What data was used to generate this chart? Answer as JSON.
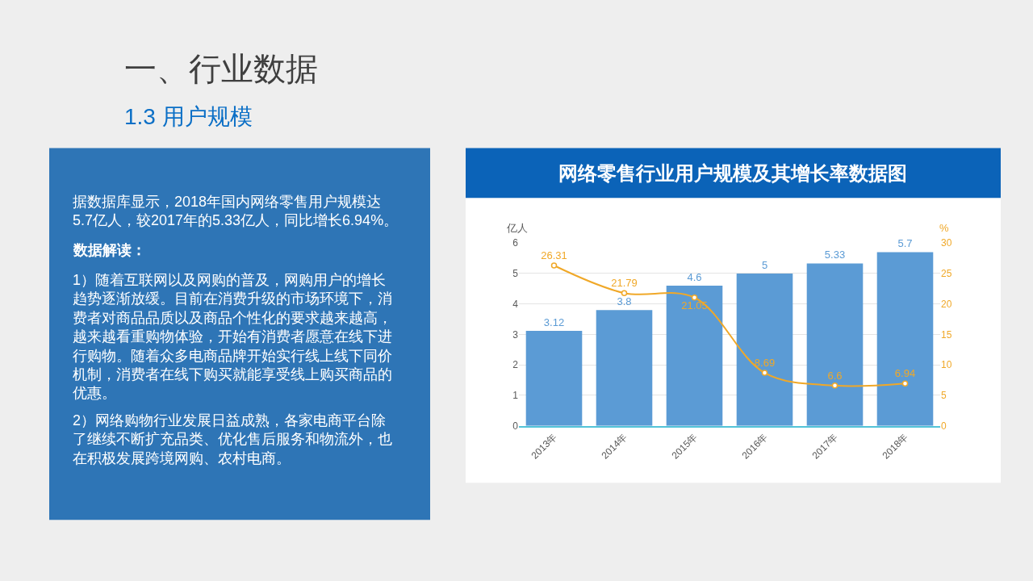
{
  "chart_data": [
    {
      "type": "other",
      "title": "一、行业数据",
      "subtitle": "1.3 用户规模",
      "annotations": [
        "据数据库显示，2018年国内网络零售用户规模达5.7亿人，较2017年的5.33亿人，同比增长6.94%。",
        "数据解读：",
        "1）随着互联网以及网购的普及，网购用户的增长趋势逐渐放缓。目前在消费升级的市场环境下，消费者对商品品质以及商品个性化的要求越来越高，越来越看重购物体验，开始有消费者愿意在线下进行购物。随着众多电商品牌开始实行线上线下同价机制，消费者在线下购买就能享受线上购买商品的优惠。",
        "2）网络购物行业发展日益成熟，各家电商平台除了继续不断扩充品类、优化售后服务和物流外，也在积极发展跨境网购、农村电商。"
      ]
    },
    {
      "type": "bar",
      "title": "网络零售行业用户规模及其增长率数据图",
      "categories": [
        "2013年",
        "2014年",
        "2015年",
        "2016年",
        "2017年",
        "2018年"
      ],
      "ylabel": "亿人",
      "y2label": "%",
      "ylim": [
        0,
        6
      ],
      "yticks": [
        0,
        1,
        2,
        3,
        4,
        5,
        6
      ],
      "y2lim": [
        0,
        30
      ],
      "y2ticks": [
        0,
        5,
        10,
        15,
        20,
        25,
        30
      ],
      "grid": "y",
      "data_labels": true,
      "marker": "circle",
      "series": [
        {
          "type": "bar",
          "color": "#5b9bd5",
          "values": [
            3.12,
            3.8,
            4.6,
            5,
            5.33,
            5.7
          ]
        },
        {
          "type": "line",
          "axis": "y2",
          "color": "#f0a828",
          "values": [
            26.31,
            21.79,
            21.05,
            8.69,
            6.6,
            6.94
          ]
        }
      ]
    }
  ]
}
